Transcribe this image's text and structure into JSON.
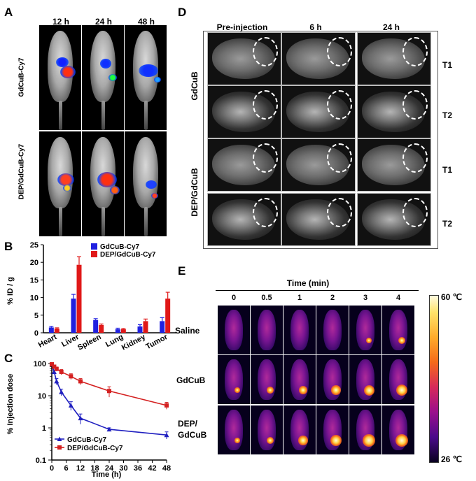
{
  "panels": {
    "A": {
      "label": "A",
      "columns": [
        "12 h",
        "24 h",
        "48 h"
      ],
      "rows": [
        "GdCuB-Cy7",
        "DEP/GdCuB-Cy7"
      ]
    },
    "B": {
      "label": "B"
    },
    "C": {
      "label": "C"
    },
    "D": {
      "label": "D",
      "columns": [
        "Pre-injection",
        "6 h",
        "24 h"
      ],
      "groups": [
        "GdCuB",
        "DEP/GdCuB"
      ],
      "row_modes": [
        "T1",
        "T2",
        "T1",
        "T2"
      ]
    },
    "E": {
      "label": "E",
      "time_title": "Time (min)",
      "columns": [
        "0",
        "0.5",
        "1",
        "2",
        "3",
        "4"
      ],
      "rows": [
        "Saline",
        "GdCuB",
        "DEP/\nGdCuB"
      ],
      "colorbar_max": "60 ℃",
      "colorbar_min": "26 ℃"
    }
  },
  "chart_data": [
    {
      "id": "B",
      "type": "bar",
      "categories": [
        "Heart",
        "Liver",
        "Spleen",
        "Lung",
        "Kidney",
        "Tumor"
      ],
      "series": [
        {
          "name": "GdCuB-Cy7",
          "color": "#2020e0",
          "values": [
            1.5,
            9.7,
            3.6,
            1.0,
            1.8,
            3.3
          ],
          "errors": [
            0.3,
            1.2,
            0.4,
            0.3,
            0.5,
            1.0
          ]
        },
        {
          "name": "DEP/GdCuB-Cy7",
          "color": "#e01818",
          "values": [
            1.2,
            19.3,
            2.2,
            1.0,
            3.3,
            9.7
          ],
          "errors": [
            0.2,
            2.3,
            0.3,
            0.2,
            0.6,
            1.8
          ]
        }
      ],
      "ylabel": "% ID / g",
      "ylim": [
        0,
        25
      ],
      "yticks": [
        0,
        5,
        10,
        15,
        20,
        25
      ],
      "legend": "top-right"
    },
    {
      "id": "C",
      "type": "line",
      "x": [
        0,
        1,
        2,
        4,
        8,
        12,
        24,
        48
      ],
      "series": [
        {
          "name": "GdCuB-Cy7",
          "color": "#2020c0",
          "values": [
            95,
            55,
            28,
            13,
            5,
            2,
            0.9,
            0.6
          ],
          "errors": [
            8,
            8,
            6,
            3,
            1.5,
            0.7,
            0.1,
            0.15
          ]
        },
        {
          "name": "DEP/GdCuB-Cy7",
          "color": "#d42020",
          "values": [
            95,
            80,
            68,
            55,
            40,
            28,
            14,
            5
          ],
          "errors": [
            8,
            10,
            10,
            10,
            8,
            6,
            5,
            1.2
          ]
        }
      ],
      "xlabel": "Time (h)",
      "ylabel": "% Injection dose",
      "xlim": [
        0,
        48
      ],
      "xticks": [
        0,
        6,
        12,
        18,
        24,
        30,
        36,
        42,
        48
      ],
      "ylim": [
        0.1,
        100
      ],
      "yticks": [
        0.1,
        1,
        10,
        100
      ],
      "yscale": "log",
      "legend": "bottom-left"
    }
  ]
}
